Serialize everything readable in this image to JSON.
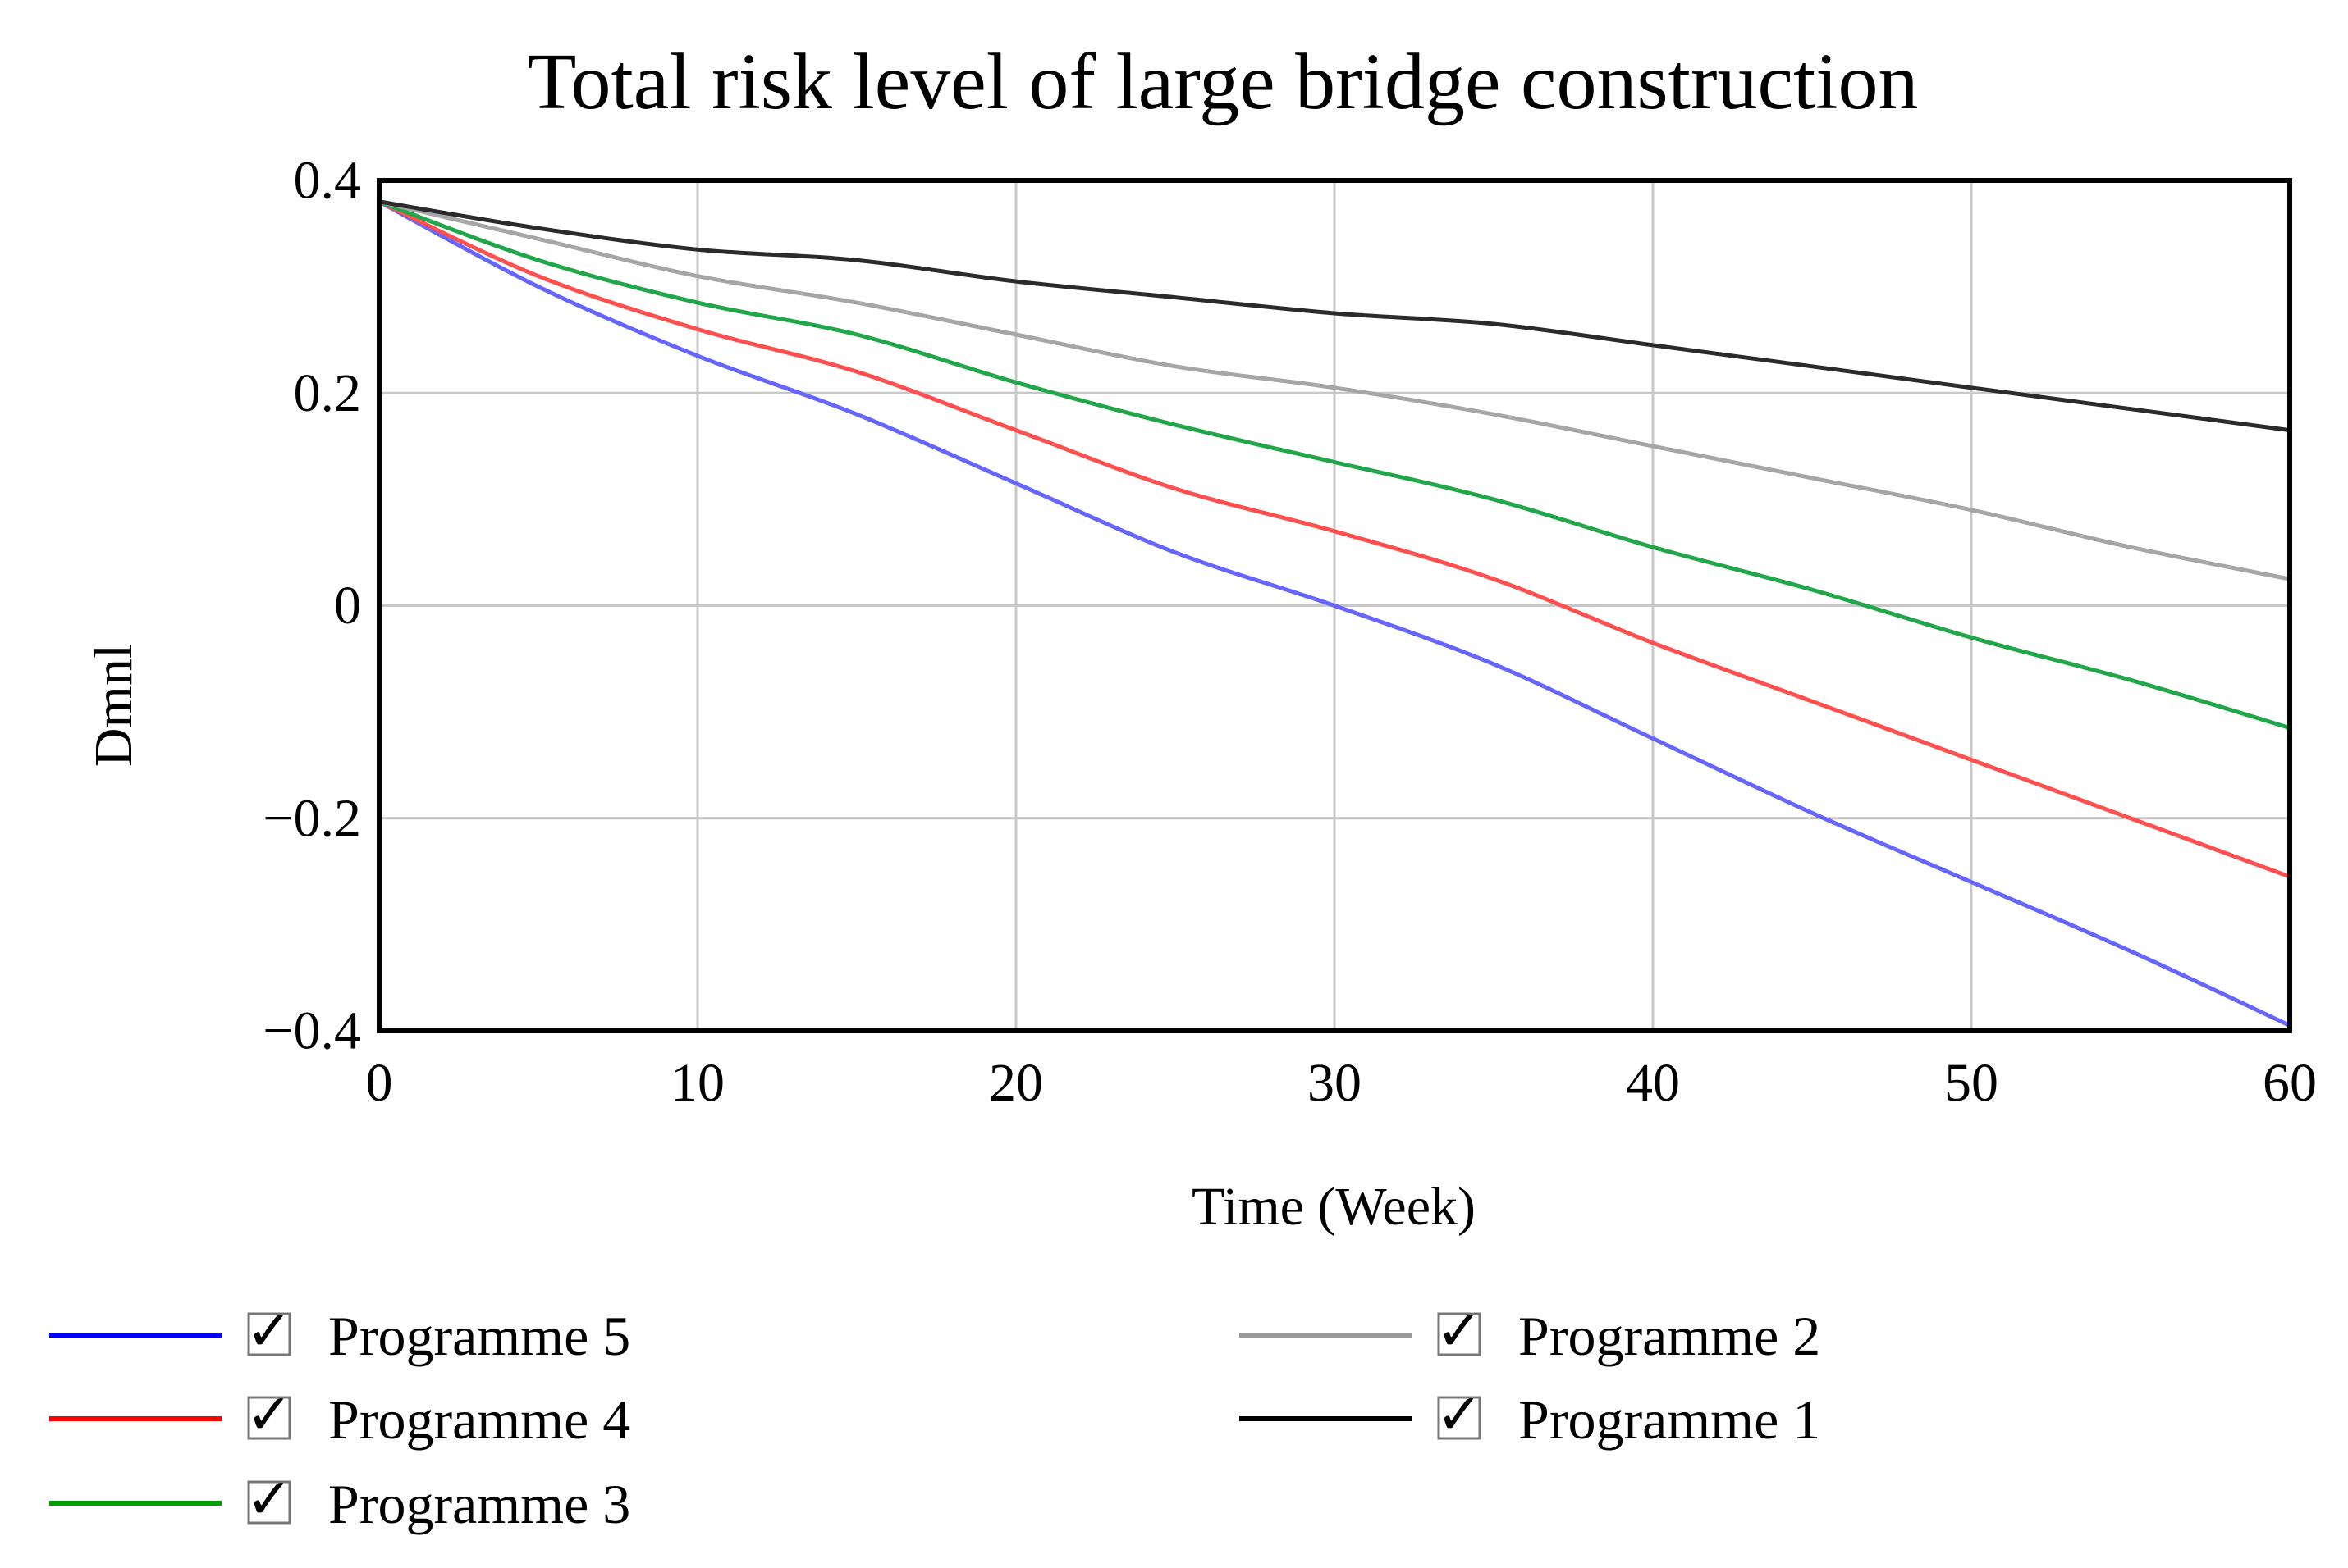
{
  "chart_data": {
    "type": "line",
    "title": "Total risk level of large bridge construction",
    "xlabel": "Time (Week)",
    "ylabel": "Dmnl",
    "xlim": [
      0,
      60
    ],
    "ylim": [
      -0.4,
      0.4
    ],
    "x_ticks": [
      0,
      10,
      20,
      30,
      40,
      50,
      60
    ],
    "x_tick_labels": [
      "0",
      "10",
      "20",
      "30",
      "40",
      "50",
      "60"
    ],
    "y_ticks": [
      0.4,
      0.2,
      0,
      -0.2,
      -0.4
    ],
    "y_tick_labels": [
      "0.4",
      "0.2",
      "0",
      "−0.2",
      "−0.4"
    ],
    "grid": true,
    "legend_position": "bottom",
    "x": [
      0,
      5,
      10,
      15,
      20,
      25,
      30,
      35,
      40,
      45,
      50,
      55,
      60
    ],
    "series": [
      {
        "name": "Programme 5",
        "color": "#6666ff",
        "legend_color": "#0000ff",
        "values": [
          0.38,
          0.3,
          0.235,
          0.18,
          0.115,
          0.05,
          0.0,
          -0.055,
          -0.125,
          -0.195,
          -0.26,
          -0.325,
          -0.395
        ]
      },
      {
        "name": "Programme 4",
        "color": "#ff5050",
        "legend_color": "#ff0000",
        "values": [
          0.38,
          0.31,
          0.26,
          0.22,
          0.165,
          0.11,
          0.07,
          0.025,
          -0.035,
          -0.09,
          -0.145,
          -0.2,
          -0.255
        ]
      },
      {
        "name": "Programme 3",
        "color": "#22a64a",
        "legend_color": "#00a000",
        "values": [
          0.38,
          0.325,
          0.285,
          0.255,
          0.21,
          0.17,
          0.135,
          0.1,
          0.055,
          0.015,
          -0.03,
          -0.07,
          -0.115
        ]
      },
      {
        "name": "Programme 2",
        "color": "#a6a6a6",
        "legend_color": "#999999",
        "values": [
          0.38,
          0.345,
          0.31,
          0.285,
          0.255,
          0.225,
          0.205,
          0.18,
          0.15,
          0.12,
          0.09,
          0.055,
          0.025
        ]
      },
      {
        "name": "Programme 1",
        "color": "#2b2b2b",
        "legend_color": "#000000",
        "values": [
          0.38,
          0.355,
          0.335,
          0.325,
          0.305,
          0.29,
          0.275,
          0.265,
          0.245,
          0.225,
          0.205,
          0.185,
          0.165
        ]
      }
    ],
    "legend_order": [
      [
        "Programme 5",
        "Programme 2"
      ],
      [
        "Programme 4",
        "Programme 1"
      ],
      [
        "Programme 3"
      ]
    ],
    "legend_checkbox_mark": "✓"
  }
}
